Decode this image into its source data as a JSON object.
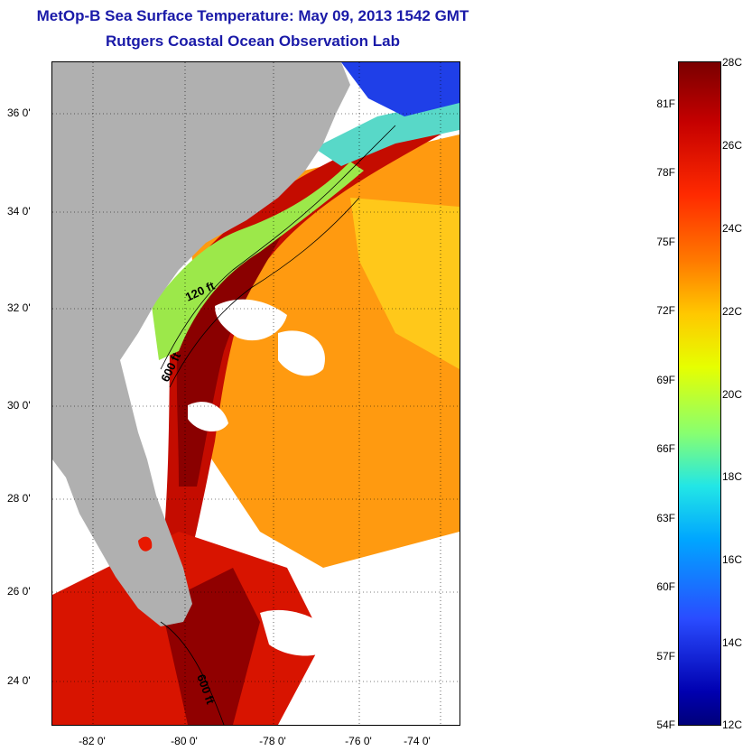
{
  "title": "MetOp-B Sea Surface Temperature:  May 09, 2013 1542 GMT",
  "subtitle": "Rutgers Coastal Ocean Observation Lab",
  "y_axis_labels": [
    "36 0'",
    "34 0'",
    "32 0'",
    "30 0'",
    "28 0'",
    "26 0'",
    "24 0'"
  ],
  "x_axis_labels": [
    "-82 0'",
    "-80 0'",
    "-78 0'",
    "-76 0'",
    "-74 0'"
  ],
  "contour_labels": [
    "120 ft",
    "600 ft",
    "600 ft"
  ],
  "colorbar": {
    "fahrenheit": [
      "81F",
      "78F",
      "75F",
      "72F",
      "69F",
      "66F",
      "63F",
      "60F",
      "57F",
      "54F"
    ],
    "celsius": [
      "28C",
      "26C",
      "24C",
      "22C",
      "20C",
      "18C",
      "16C",
      "14C",
      "12C"
    ],
    "range_c": [
      12,
      28
    ]
  },
  "colors": {
    "title": "#1a1aa8",
    "land": "#b0b0b0",
    "cloud": "#ffffff"
  }
}
